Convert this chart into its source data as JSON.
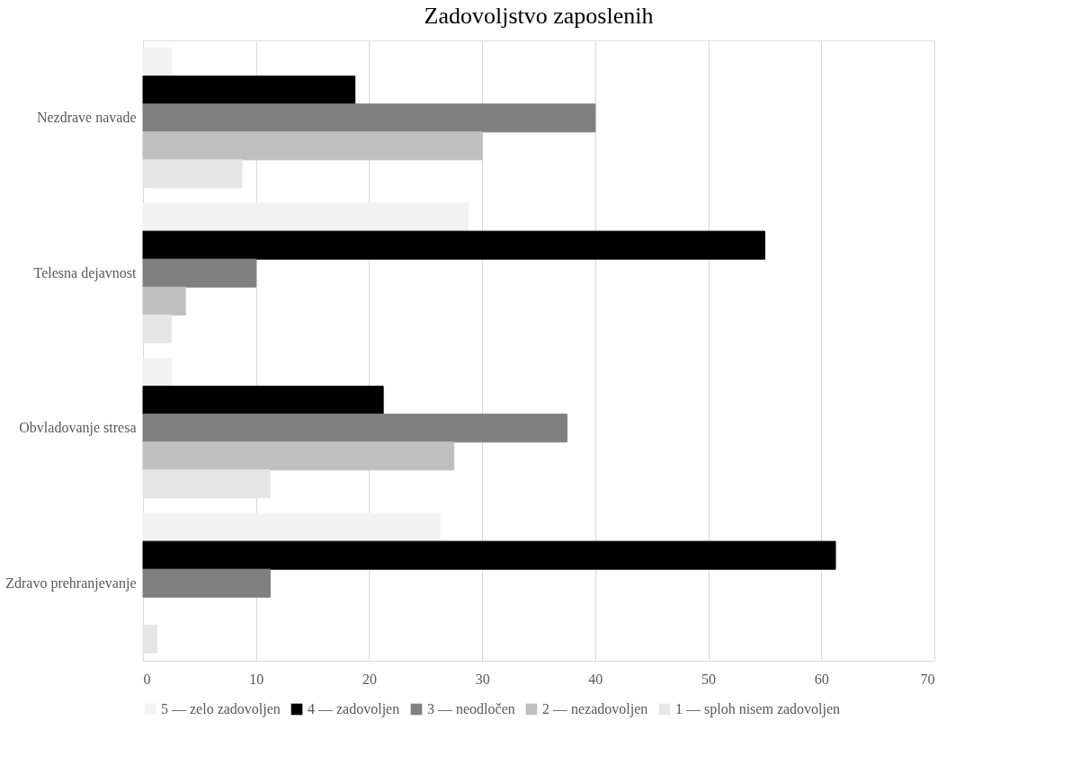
{
  "chart_data": {
    "type": "bar",
    "orientation": "horizontal",
    "title": "Zadovoljstvo zaposlenih",
    "categories": [
      "Nezdrave navade",
      "Telesna dejavnost",
      "Obvladovanje stresa",
      "Zdravo prehranjevanje"
    ],
    "series": [
      {
        "name": "5 — zelo zadovoljen",
        "color": "#f2f2f2",
        "values": [
          2.5,
          28.75,
          2.5,
          26.25
        ]
      },
      {
        "name": "4 — zadovoljen",
        "color": "#000000",
        "values": [
          18.75,
          55,
          21.25,
          61.25
        ]
      },
      {
        "name": "3 — neodločen",
        "color": "#808080",
        "values": [
          40,
          10,
          37.5,
          11.25
        ]
      },
      {
        "name": "2 — nezadovoljen",
        "color": "#bfbfbf",
        "values": [
          30,
          3.75,
          27.5,
          null
        ]
      },
      {
        "name": "1 — sploh nisem zadovoljen",
        "color": "#e7e6e6",
        "values": [
          8.75,
          2.5,
          11.25,
          1.25
        ]
      }
    ],
    "xlim": [
      0,
      70
    ],
    "xticks": [
      0,
      10,
      20,
      30,
      40,
      50,
      60,
      70
    ],
    "grid": "x",
    "legend": "bottom"
  }
}
